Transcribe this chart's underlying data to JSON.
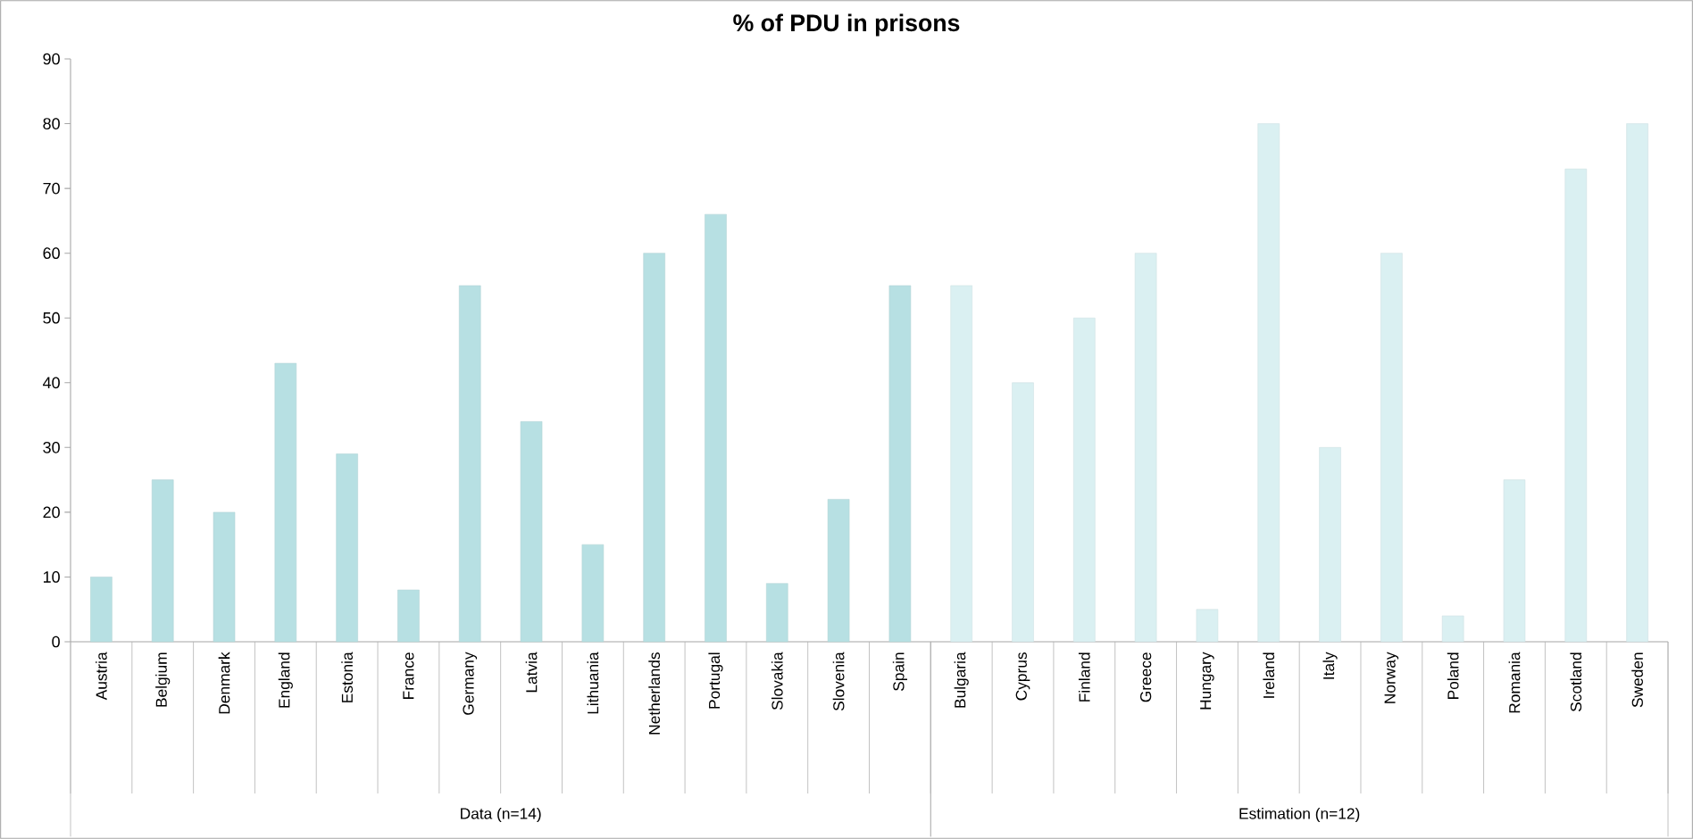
{
  "chart_data": {
    "type": "bar",
    "title": "% of PDU in prisons",
    "categories": [
      "Austria",
      "Belgium",
      "Denmark",
      "England",
      "Estonia",
      "France",
      "Germany",
      "Latvia",
      "Lithuania",
      "Netherlands",
      "Portugal",
      "Slovakia",
      "Slovenia",
      "Spain",
      "Bulgaria",
      "Cyprus",
      "Finland",
      "Greece",
      "Hungary",
      "Ireland",
      "Italy",
      "Norway",
      "Poland",
      "Romania",
      "Scotland",
      "Sweden"
    ],
    "values": [
      10,
      25,
      20,
      43,
      29,
      8,
      55,
      34,
      15,
      60,
      66,
      9,
      22,
      55,
      55,
      40,
      50,
      60,
      5,
      80,
      30,
      60,
      4,
      25,
      73,
      80
    ],
    "colors": [
      "#b7e0e3",
      "#b7e0e3",
      "#b7e0e3",
      "#b7e0e3",
      "#b7e0e3",
      "#b7e0e3",
      "#b7e0e3",
      "#b7e0e3",
      "#b7e0e3",
      "#b7e0e3",
      "#b7e0e3",
      "#b7e0e3",
      "#b7e0e3",
      "#b7e0e3",
      "#daf0f2",
      "#daf0f2",
      "#daf0f2",
      "#daf0f2",
      "#daf0f2",
      "#daf0f2",
      "#daf0f2",
      "#daf0f2",
      "#daf0f2",
      "#daf0f2",
      "#daf0f2",
      "#daf0f2"
    ],
    "annotations": [
      "Data (n=14)",
      "Estimation (n=12)"
    ],
    "ylim": [
      0,
      90
    ],
    "yticks": [
      0,
      10,
      20,
      30,
      40,
      50,
      60,
      70,
      80,
      90
    ],
    "grid": false
  }
}
